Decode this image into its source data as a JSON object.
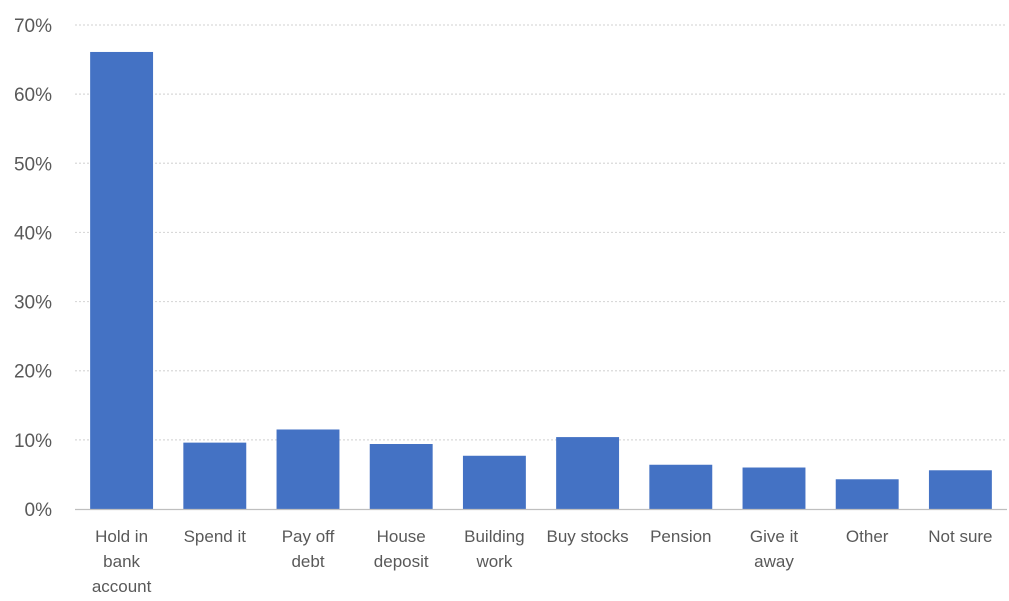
{
  "chart_data": {
    "type": "bar",
    "categories": [
      [
        "Hold in",
        "bank",
        "account"
      ],
      [
        "Spend it"
      ],
      [
        "Pay off",
        "debt"
      ],
      [
        "House",
        "deposit"
      ],
      [
        "Building",
        "work"
      ],
      [
        "Buy stocks"
      ],
      [
        "Pension"
      ],
      [
        "Give it",
        "away"
      ],
      [
        "Other"
      ],
      [
        "Not sure"
      ]
    ],
    "values": [
      66.1,
      9.6,
      11.5,
      9.4,
      7.7,
      10.4,
      6.4,
      6.0,
      4.3,
      5.6
    ],
    "ylim": [
      0,
      70
    ],
    "yticks": [
      0,
      10,
      20,
      30,
      40,
      50,
      60,
      70
    ],
    "ytick_labels": [
      "0%",
      "10%",
      "20%",
      "30%",
      "40%",
      "50%",
      "60%",
      "70%"
    ],
    "grid": true,
    "colors": {
      "bar": "#4472C4",
      "grid": "#D9D9D9",
      "axis": "#BFBFBF",
      "text": "#595959"
    }
  }
}
